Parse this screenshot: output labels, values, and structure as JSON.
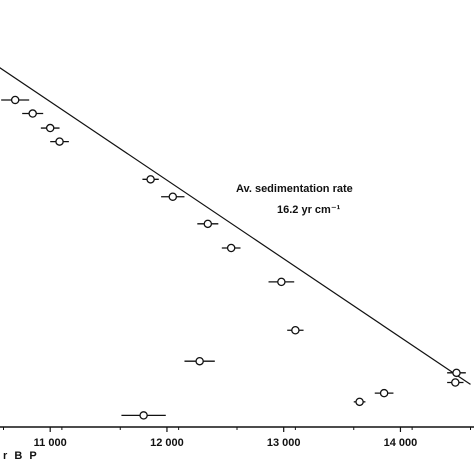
{
  "chart_data": {
    "type": "scatter",
    "title": "",
    "xlabel": "r B P",
    "ylabel": "",
    "xlim": [
      10570,
      14630
    ],
    "ylim": [
      0,
      40
    ],
    "x_ticks": [
      {
        "value": 11000,
        "label": "11 000"
      },
      {
        "value": 12000,
        "label": "12 000"
      },
      {
        "value": 13000,
        "label": "13 000"
      },
      {
        "value": 14000,
        "label": "14 000"
      }
    ],
    "grid": false,
    "annotations": [
      {
        "text": "Av. sedimentation rate"
      },
      {
        "text": "16.2 yr cm⁻¹"
      }
    ],
    "regression_line": {
      "x": [
        10560,
        14600
      ],
      "y": [
        2.8,
        35.6
      ]
    },
    "series": [
      {
        "points": [
          {
            "x": 10700,
            "y": 6.2,
            "err": 120
          },
          {
            "x": 10850,
            "y": 7.6,
            "err": 90
          },
          {
            "x": 11000,
            "y": 9.1,
            "err": 80
          },
          {
            "x": 11080,
            "y": 10.5,
            "err": 80
          },
          {
            "x": 11860,
            "y": 14.4,
            "err": 70
          },
          {
            "x": 12050,
            "y": 16.2,
            "err": 100
          },
          {
            "x": 12350,
            "y": 19.0,
            "err": 90
          },
          {
            "x": 12550,
            "y": 21.5,
            "err": 80
          },
          {
            "x": 12980,
            "y": 25.0,
            "err": 110
          },
          {
            "x": 13100,
            "y": 30.0,
            "err": 70
          },
          {
            "x": 12280,
            "y": 33.2,
            "err": 130
          },
          {
            "x": 14480,
            "y": 34.4,
            "err": 80
          },
          {
            "x": 14470,
            "y": 35.4,
            "err": 70
          },
          {
            "x": 13860,
            "y": 36.5,
            "err": 80
          },
          {
            "x": 13650,
            "y": 37.4,
            "err": 50
          },
          {
            "x": 11800,
            "y": 38.8,
            "err": 190
          }
        ]
      }
    ]
  }
}
